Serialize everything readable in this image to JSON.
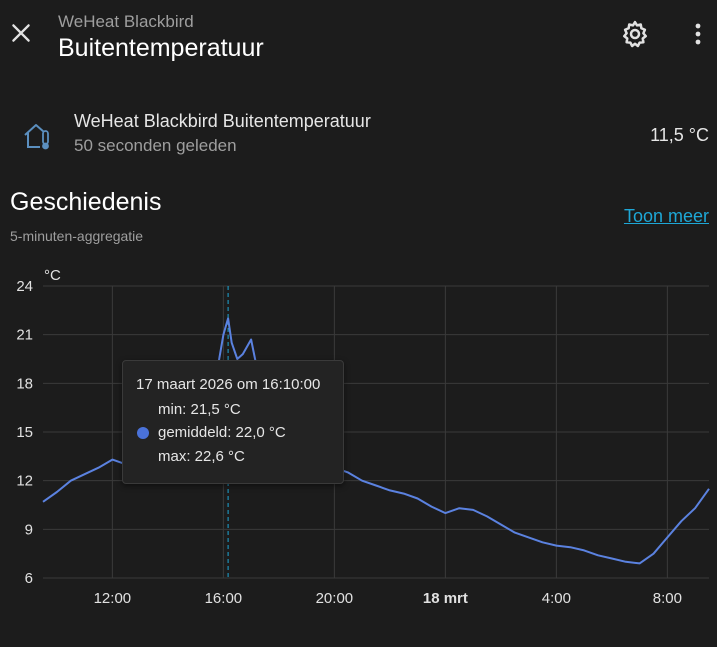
{
  "header": {
    "subtitle": "WeHeat Blackbird",
    "title": "Buitentemperatuur",
    "close_icon": "close-icon",
    "settings_icon": "gear-icon",
    "more_icon": "more-vertical-icon"
  },
  "entity": {
    "icon": "home-thermometer-icon",
    "name": "WeHeat Blackbird Buitentemperatuur",
    "last_changed": "50 seconden geleden",
    "value": "11,5 °C"
  },
  "history": {
    "title": "Geschiedenis",
    "show_more": "Toon meer",
    "aggregation": "5-minuten-aggregatie"
  },
  "chart_data": {
    "type": "line",
    "ylabel": "°C",
    "ylim": [
      6,
      24
    ],
    "y_ticks": [
      "24",
      "21",
      "18",
      "15",
      "12",
      "9",
      "6"
    ],
    "x_ticks": [
      "12:00",
      "16:00",
      "20:00",
      "18 mrt",
      "4:00",
      "8:00"
    ],
    "x_tick_hours": [
      12,
      16,
      20,
      24,
      28,
      32
    ],
    "xlim_hours": [
      9.5,
      33.5
    ],
    "grid": true,
    "color": "#5b82e0",
    "hover_hour": 16.17,
    "series": [
      {
        "x": [
          9.5,
          10,
          10.5,
          11,
          11.5,
          12,
          12.5,
          13,
          13.5,
          14,
          14.5,
          15,
          15.5,
          15.8,
          16,
          16.1,
          16.17,
          16.3,
          16.5,
          16.7,
          17,
          17.2,
          17.5,
          18,
          18.5,
          19,
          19.5,
          20,
          20.5,
          21,
          21.5,
          22,
          22.5,
          23,
          23.5,
          24,
          24.5,
          25,
          25.5,
          26,
          26.5,
          27,
          27.5,
          28,
          28.5,
          29,
          29.5,
          30,
          30.5,
          31,
          31.5,
          32,
          32.5,
          33,
          33.5
        ],
        "values": [
          10.7,
          11.3,
          12.0,
          12.4,
          12.8,
          13.3,
          13.0,
          13.4,
          13.5,
          13.6,
          13.9,
          14.2,
          16.0,
          19.0,
          21.0,
          21.6,
          22.0,
          20.5,
          19.5,
          19.8,
          20.7,
          19.0,
          17.0,
          15.2,
          14.0,
          13.5,
          13.2,
          12.8,
          12.5,
          12.0,
          11.7,
          11.4,
          11.2,
          10.9,
          10.4,
          10.0,
          10.3,
          10.2,
          9.8,
          9.3,
          8.8,
          8.5,
          8.2,
          8.0,
          7.9,
          7.7,
          7.4,
          7.2,
          7.0,
          6.9,
          7.5,
          8.5,
          9.5,
          10.3,
          11.5
        ]
      }
    ]
  },
  "tooltip": {
    "title": "17 maart 2026 om 16:10:00",
    "min": "min: 21,5 °C",
    "avg": "gemiddeld: 22,0 °C",
    "max": "max: 22,6 °C"
  }
}
